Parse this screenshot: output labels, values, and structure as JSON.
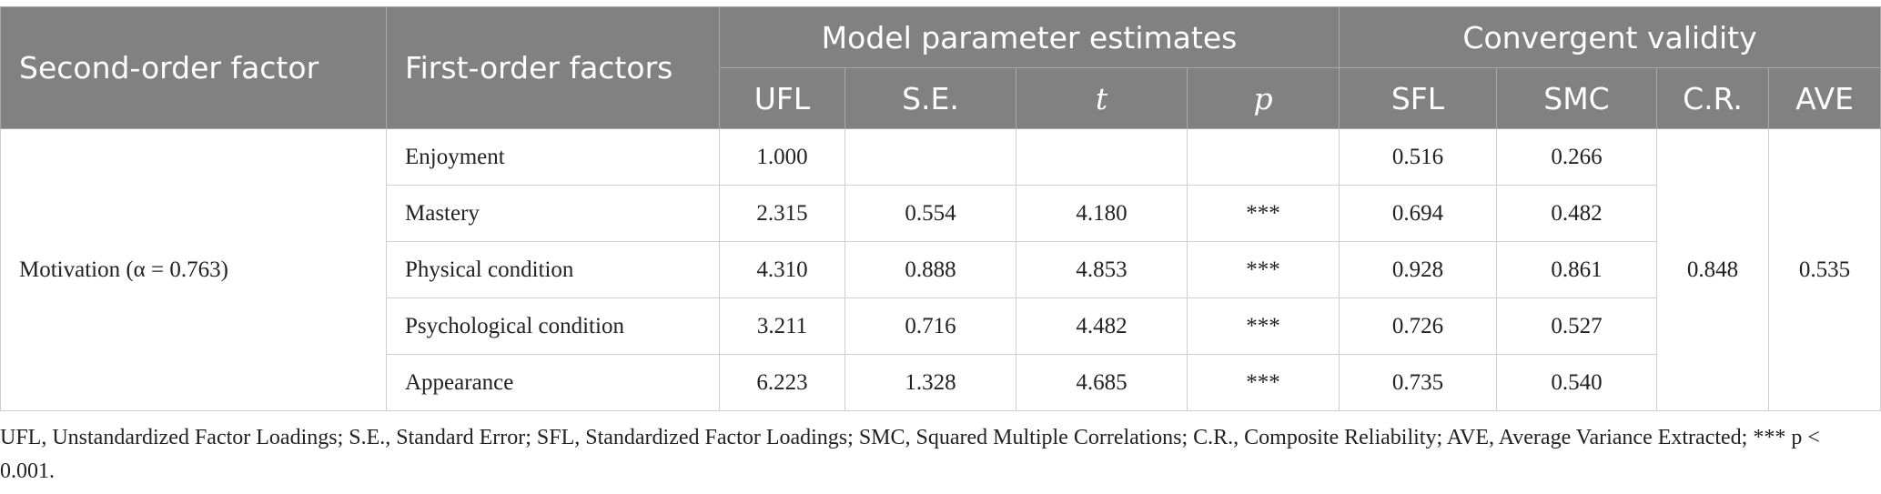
{
  "table": {
    "header": {
      "second_order": "Second-order factor",
      "first_order": "First-order factors",
      "group_model": "Model parameter estimates",
      "group_validity": "Convergent validity",
      "columns": [
        "UFL",
        "S.E.",
        "t",
        "p",
        "SFL",
        "SMC",
        "C.R.",
        "AVE"
      ]
    },
    "second_order_factor": "Motivation (α = 0.763)",
    "rows": [
      [
        "Enjoyment",
        "1.000",
        null,
        null,
        null,
        "0.516",
        "0.266"
      ],
      [
        "Mastery",
        "2.315",
        "0.554",
        "4.180",
        "***",
        "0.694",
        "0.482"
      ],
      [
        "Physical condition",
        "4.310",
        "0.888",
        "4.853",
        "***",
        "0.928",
        "0.861"
      ],
      [
        "Psychological condition",
        "3.211",
        "0.716",
        "4.482",
        "***",
        "0.726",
        "0.527"
      ],
      [
        "Appearance",
        "6.223",
        "1.328",
        "4.685",
        "***",
        "0.735",
        "0.540"
      ]
    ],
    "cr": "0.848",
    "ave": "0.535"
  },
  "footnote": "UFL, Unstandardized Factor Loadings; S.E., Standard Error; SFL, Standardized Factor Loadings; SMC, Squared Multiple Correlations; C.R., Composite Reliability; AVE, Average Variance Extracted; *** p < 0.001."
}
